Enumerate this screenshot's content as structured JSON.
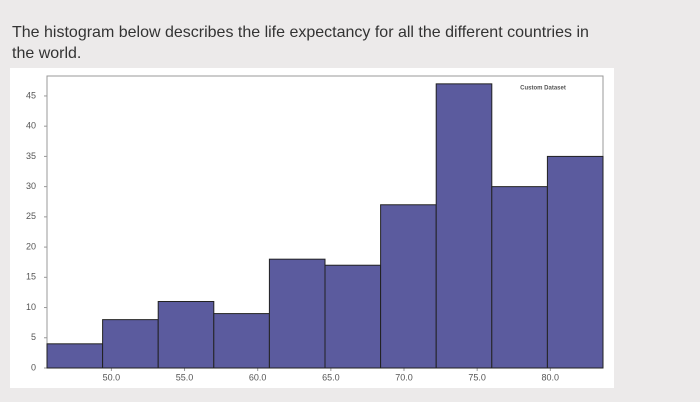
{
  "question": "The histogram below describes the life expectancy for all the different countries in the world.",
  "chart_data": {
    "type": "histogram",
    "bins": [
      45.6,
      49.4,
      53.2,
      57.0,
      60.8,
      64.6,
      68.4,
      72.2,
      76.0,
      79.8,
      83.6
    ],
    "series": [
      {
        "name": "Custom Dataset",
        "color": "#5b5b9e",
        "values": [
          4,
          8,
          11,
          9,
          18,
          17,
          27,
          47,
          30,
          35
        ]
      }
    ],
    "xlim": [
      45.6,
      83.6
    ],
    "xticks": [
      {
        "value": 50,
        "label": "50.0"
      },
      {
        "value": 55,
        "label": "55.0"
      },
      {
        "value": 60,
        "label": "60.0"
      },
      {
        "value": 65,
        "label": "65.0"
      },
      {
        "value": 70,
        "label": "70.0"
      },
      {
        "value": 75,
        "label": "75.0"
      },
      {
        "value": 80,
        "label": "80.0"
      }
    ],
    "ylim": [
      0,
      48.3
    ],
    "yticks": [
      0,
      5,
      10,
      15,
      20,
      25,
      30,
      35,
      40,
      45
    ],
    "legend": "upper right"
  }
}
